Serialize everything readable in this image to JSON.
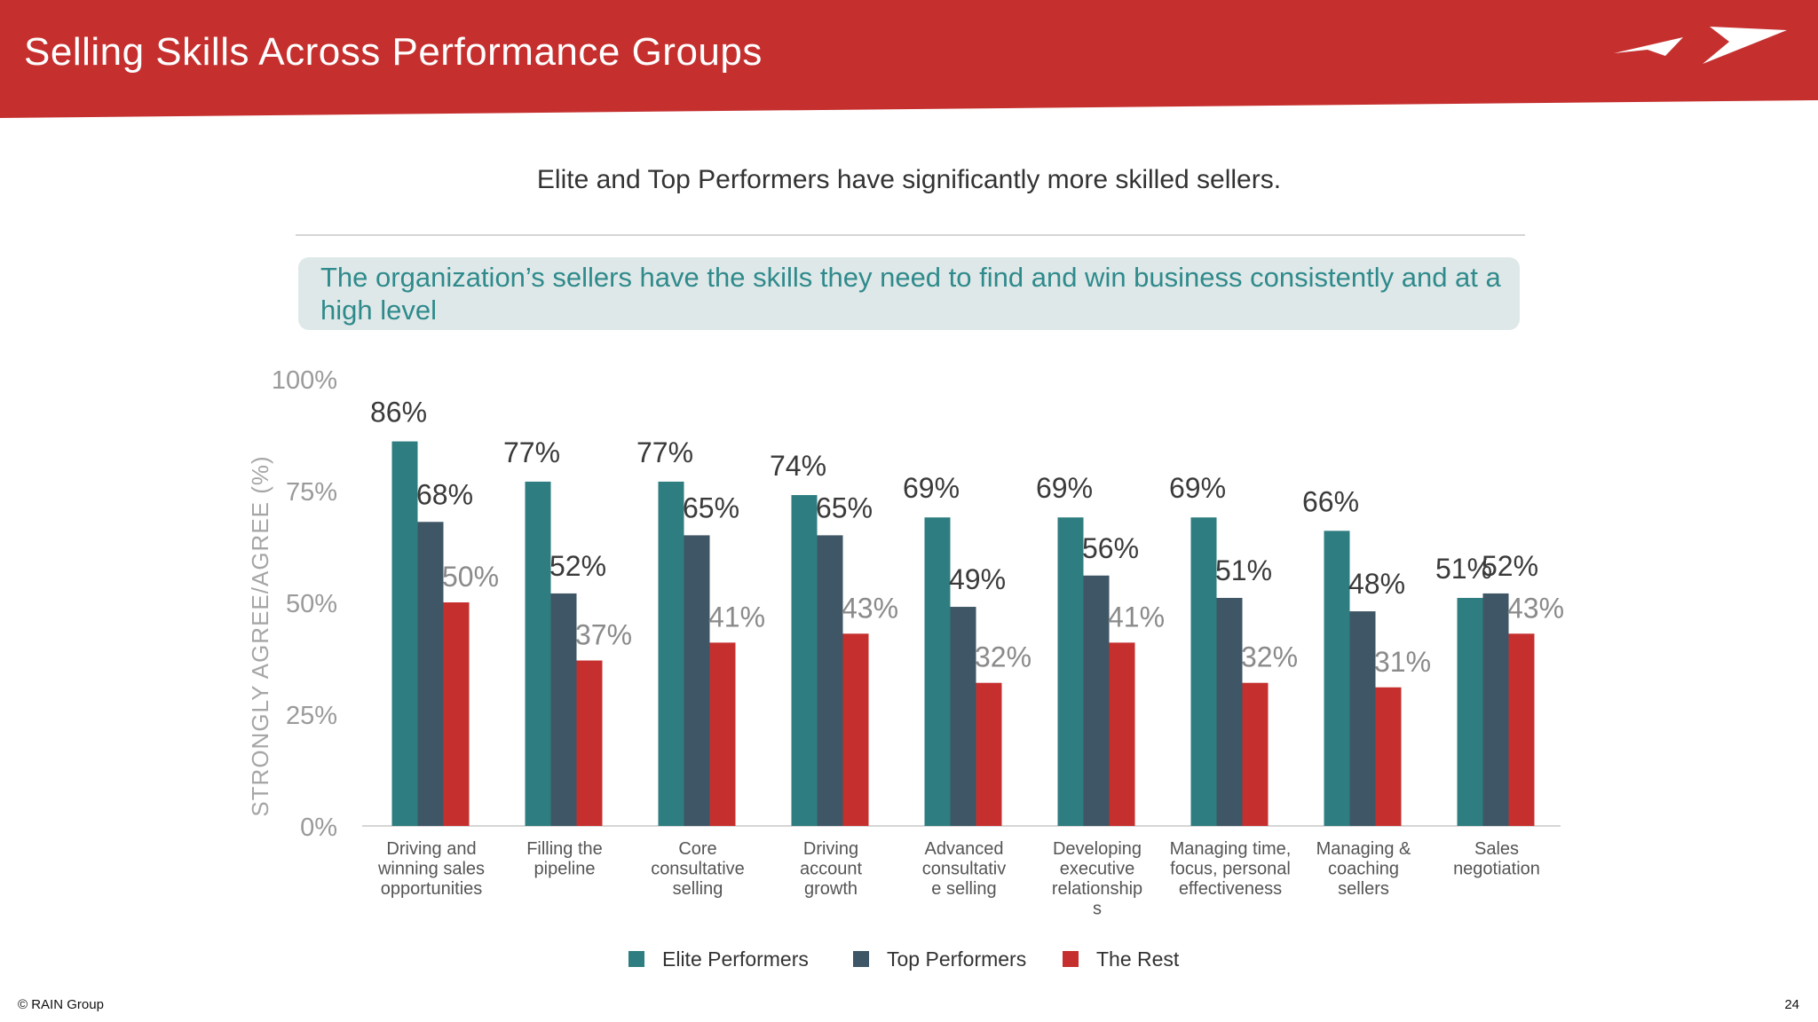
{
  "header": {
    "title": "Selling Skills Across Performance Groups"
  },
  "subtitle": "Elite and Top Performers have significantly more skilled sellers.",
  "question": "The organization’s sellers have the skills they need to find and win business consistently and at a high level",
  "colors": {
    "header": "#c5302f",
    "elite": "#2e7d80",
    "top": "#3e5665",
    "rest": "#c5302f",
    "question_bg": "#dfe8e8",
    "question_text": "#2f8a8c"
  },
  "chart_data": {
    "type": "bar",
    "ylabel": "STRONGLY AGREE/AGREE (%)",
    "xlabel": "",
    "ylim": [
      0,
      100
    ],
    "yticks": [
      "0%",
      "25%",
      "50%",
      "75%",
      "100%"
    ],
    "grid": false,
    "legend_position": "bottom",
    "categories": [
      [
        "Driving and",
        "winning sales",
        "opportunities"
      ],
      [
        "Filling the",
        "pipeline"
      ],
      [
        "Core",
        "consultative",
        "selling"
      ],
      [
        "Driving",
        "account",
        "growth"
      ],
      [
        "Advanced",
        "consultativ",
        "e selling"
      ],
      [
        "Developing",
        "executive",
        "relationship",
        "s"
      ],
      [
        "Managing time,",
        "focus, personal",
        "effectiveness"
      ],
      [
        "Managing &",
        "coaching",
        "sellers"
      ],
      [
        "Sales",
        "negotiation"
      ]
    ],
    "series": [
      {
        "name": "Elite Performers",
        "color": "#2e7d80",
        "values": [
          86,
          77,
          77,
          74,
          69,
          69,
          69,
          66,
          51
        ],
        "labels": [
          "86%",
          "77%",
          "77%",
          "74%",
          "69%",
          "69%",
          "69%",
          "66%",
          "51%"
        ]
      },
      {
        "name": "Top Performers",
        "color": "#3e5665",
        "values": [
          68,
          52,
          65,
          65,
          49,
          56,
          51,
          48,
          52
        ],
        "labels": [
          "68%",
          "52%",
          "65%",
          "65%",
          "49%",
          "56%",
          "51%",
          "48%",
          "52%"
        ]
      },
      {
        "name": "The Rest",
        "color": "#c5302f",
        "values": [
          50,
          37,
          41,
          43,
          32,
          41,
          32,
          31,
          43
        ],
        "labels": [
          "50%",
          "37%",
          "41%",
          "43%",
          "32%",
          "41%",
          "32%",
          "31%",
          "43%"
        ]
      }
    ]
  },
  "footer": {
    "copyright": "© RAIN Group",
    "page_number": "24"
  }
}
